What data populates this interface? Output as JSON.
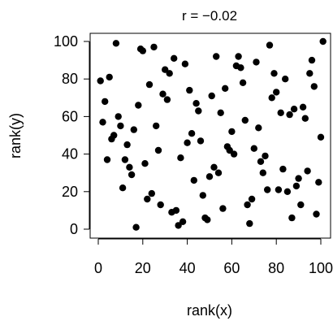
{
  "chart_data": {
    "type": "scatter",
    "title": "r = −0.02",
    "xlabel": "rank(x)",
    "ylabel": "rank(y)",
    "xlim": [
      -2,
      102
    ],
    "ylim": [
      -2,
      102
    ],
    "xticks": [
      0,
      20,
      40,
      60,
      80,
      100
    ],
    "yticks": [
      0,
      20,
      40,
      60,
      80,
      100
    ],
    "xtick_labels": [
      "0",
      "20",
      "40",
      "60",
      "80",
      "100"
    ],
    "ytick_labels": [
      "0",
      "20",
      "40",
      "60",
      "80",
      "100"
    ],
    "grid": false,
    "point_color": "#000000",
    "points": [
      [
        1,
        79
      ],
      [
        2,
        57
      ],
      [
        3,
        68
      ],
      [
        4,
        37
      ],
      [
        5,
        81
      ],
      [
        6,
        48
      ],
      [
        7,
        50
      ],
      [
        8,
        99
      ],
      [
        9,
        60
      ],
      [
        10,
        55
      ],
      [
        11,
        22
      ],
      [
        12,
        37
      ],
      [
        13,
        45
      ],
      [
        14,
        33
      ],
      [
        15,
        29
      ],
      [
        16,
        53
      ],
      [
        17,
        1
      ],
      [
        18,
        66
      ],
      [
        19,
        96
      ],
      [
        20,
        95
      ],
      [
        21,
        35
      ],
      [
        22,
        16
      ],
      [
        23,
        77
      ],
      [
        24,
        19
      ],
      [
        25,
        97
      ],
      [
        26,
        55
      ],
      [
        27,
        42
      ],
      [
        28,
        13
      ],
      [
        29,
        72
      ],
      [
        30,
        85
      ],
      [
        31,
        69
      ],
      [
        32,
        83
      ],
      [
        33,
        9
      ],
      [
        34,
        91
      ],
      [
        35,
        10
      ],
      [
        36,
        2
      ],
      [
        37,
        38
      ],
      [
        38,
        4
      ],
      [
        39,
        88
      ],
      [
        40,
        46
      ],
      [
        41,
        74
      ],
      [
        42,
        51
      ],
      [
        43,
        26
      ],
      [
        44,
        67
      ],
      [
        45,
        63
      ],
      [
        46,
        47
      ],
      [
        47,
        18
      ],
      [
        48,
        6
      ],
      [
        49,
        5
      ],
      [
        50,
        28
      ],
      [
        51,
        71
      ],
      [
        52,
        33
      ],
      [
        53,
        92
      ],
      [
        54,
        30
      ],
      [
        55,
        62
      ],
      [
        56,
        11
      ],
      [
        57,
        75
      ],
      [
        58,
        44
      ],
      [
        59,
        42
      ],
      [
        60,
        52
      ],
      [
        61,
        40
      ],
      [
        62,
        87
      ],
      [
        63,
        92
      ],
      [
        64,
        86
      ],
      [
        65,
        78
      ],
      [
        66,
        58
      ],
      [
        67,
        13
      ],
      [
        68,
        3
      ],
      [
        69,
        16
      ],
      [
        70,
        43
      ],
      [
        71,
        89
      ],
      [
        72,
        54
      ],
      [
        73,
        36
      ],
      [
        74,
        30
      ],
      [
        75,
        39
      ],
      [
        76,
        21
      ],
      [
        77,
        98
      ],
      [
        78,
        70
      ],
      [
        79,
        83
      ],
      [
        80,
        73
      ],
      [
        81,
        21
      ],
      [
        82,
        62
      ],
      [
        83,
        32
      ],
      [
        84,
        80
      ],
      [
        85,
        20
      ],
      [
        86,
        61
      ],
      [
        87,
        6
      ],
      [
        88,
        64
      ],
      [
        89,
        23
      ],
      [
        90,
        27
      ],
      [
        91,
        13
      ],
      [
        92,
        65
      ],
      [
        93,
        59
      ],
      [
        94,
        31
      ],
      [
        95,
        83
      ],
      [
        96,
        90
      ],
      [
        97,
        76
      ],
      [
        98,
        8
      ],
      [
        99,
        25
      ],
      [
        100,
        49
      ],
      [
        101,
        100
      ]
    ]
  }
}
